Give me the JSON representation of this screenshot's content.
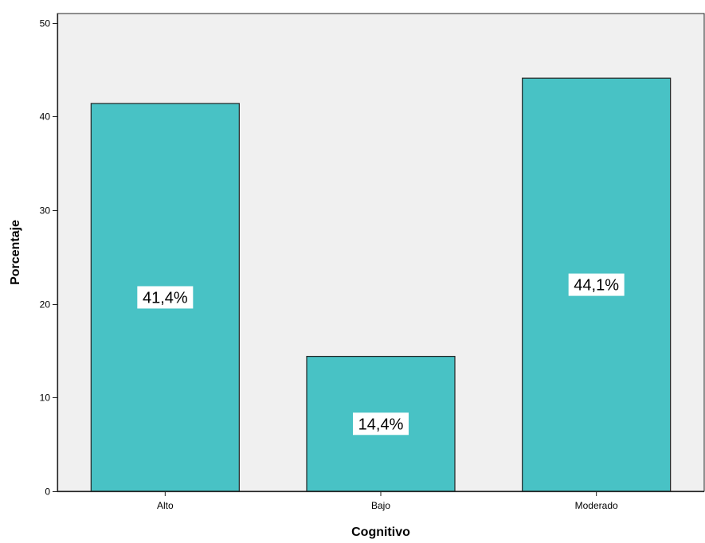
{
  "chart_data": {
    "type": "bar",
    "categories": [
      "Alto",
      "Bajo",
      "Moderado"
    ],
    "values": [
      41.4,
      14.4,
      44.1
    ],
    "data_labels": [
      "41,4%",
      "14,4%",
      "44,1%"
    ],
    "title": "",
    "xlabel": "Cognitivo",
    "ylabel": "Porcentaje",
    "ylim": [
      0,
      51
    ],
    "yticks": [
      0,
      10,
      20,
      30,
      40,
      50
    ],
    "grid": false,
    "colors": {
      "bar_fill": "#48C2C5",
      "bar_stroke": "#222222",
      "plot_background": "#F0F0F0",
      "label_background": "#FFFFFF"
    }
  }
}
